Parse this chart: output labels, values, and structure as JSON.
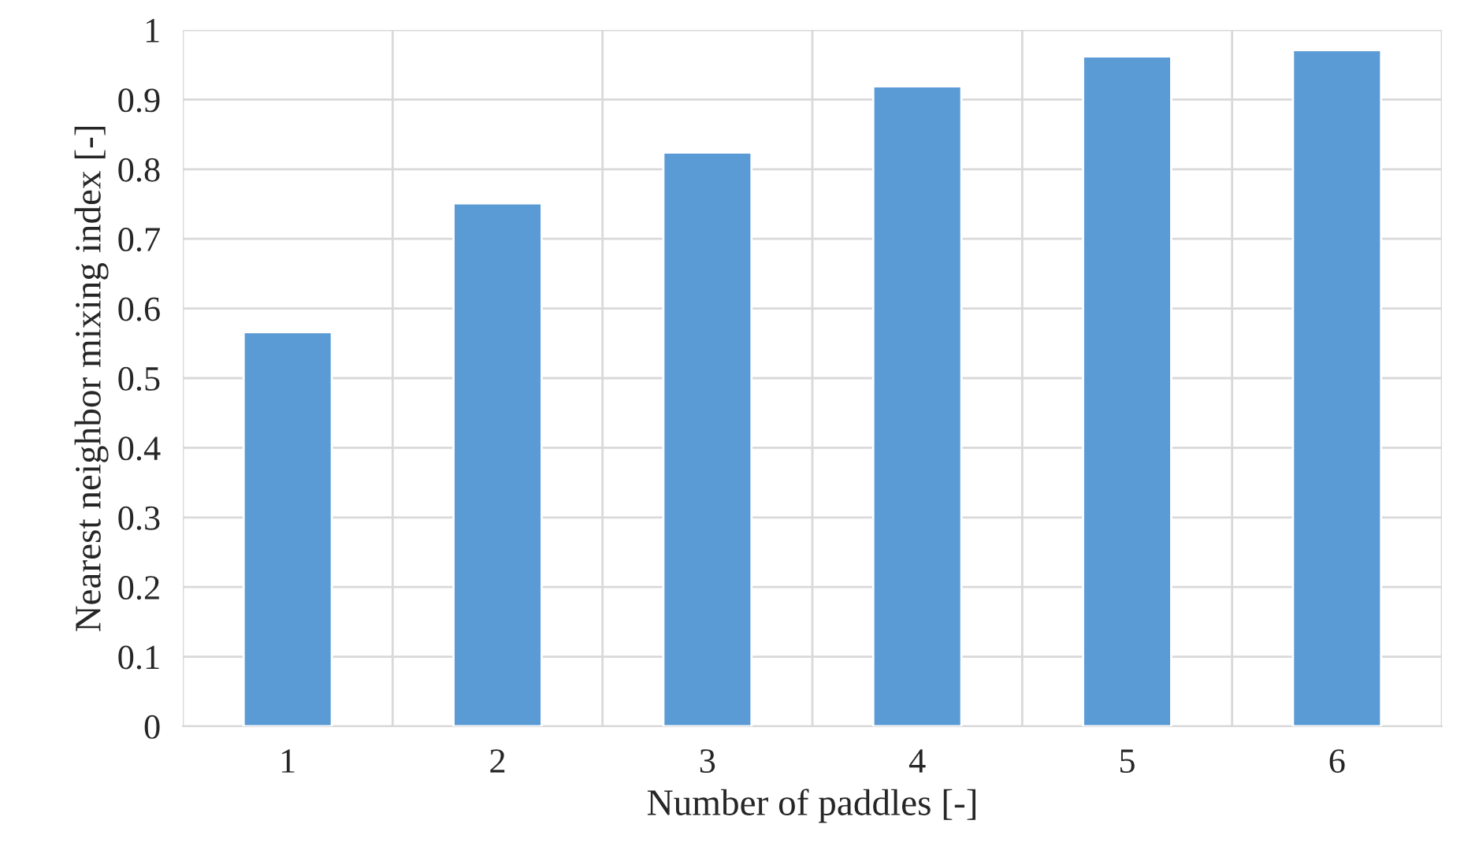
{
  "chart_data": {
    "type": "bar",
    "xlabel": "Number of paddles [-]",
    "ylabel": "Nearest neighbor mixing index [-]",
    "categories": [
      "1",
      "2",
      "3",
      "4",
      "5",
      "6"
    ],
    "values": [
      0.566,
      0.751,
      0.824,
      0.919,
      0.962,
      0.971
    ],
    "color": "#5b9bd5",
    "ylim": [
      0,
      1
    ],
    "yticks": [
      {
        "value": 0,
        "label": "0"
      },
      {
        "value": 0.1,
        "label": "0.1"
      },
      {
        "value": 0.2,
        "label": "0.2"
      },
      {
        "value": 0.3,
        "label": "0.3"
      },
      {
        "value": 0.4,
        "label": "0.4"
      },
      {
        "value": 0.5,
        "label": "0.5"
      },
      {
        "value": 0.6,
        "label": "0.6"
      },
      {
        "value": 0.7,
        "label": "0.7"
      },
      {
        "value": 0.8,
        "label": "0.8"
      },
      {
        "value": 0.9,
        "label": "0.9"
      },
      {
        "value": 1,
        "label": "1"
      }
    ],
    "grid": true
  }
}
